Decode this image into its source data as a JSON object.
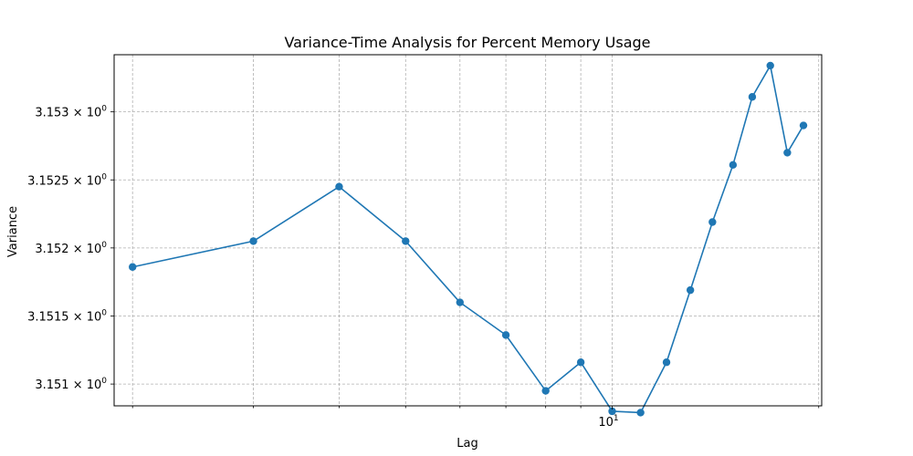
{
  "chart_data": {
    "type": "line",
    "title": "Variance-Time Analysis for Percent Memory Usage",
    "xlabel": "Lag",
    "ylabel": "Variance",
    "xscale": "log",
    "yscale": "log",
    "grid": true,
    "x_tick_labels": [
      {
        "value": 10,
        "base": "10",
        "exp": "1"
      }
    ],
    "y_tick_labels": [
      {
        "value": 3.151,
        "mant": "3.151",
        "base": "10",
        "exp": "0"
      },
      {
        "value": 3.1515,
        "mant": "3.1515",
        "base": "10",
        "exp": "0"
      },
      {
        "value": 3.152,
        "mant": "3.152",
        "base": "10",
        "exp": "0"
      },
      {
        "value": 3.1525,
        "mant": "3.1525",
        "base": "10",
        "exp": "0"
      },
      {
        "value": 3.153,
        "mant": "3.153",
        "base": "10",
        "exp": "0"
      }
    ],
    "xlim": [
      1.88,
      20.2
    ],
    "ylim": [
      3.15084,
      3.15342
    ],
    "series": [
      {
        "color": "#1f77b4",
        "marker": "circle",
        "x": [
          2,
          3,
          4,
          5,
          6,
          7,
          8,
          9,
          10,
          11,
          12,
          13,
          14,
          15,
          16,
          17,
          18,
          19
        ],
        "y": [
          3.15186,
          3.15205,
          3.15245,
          3.15205,
          3.1516,
          3.15136,
          3.15095,
          3.15116,
          3.1508,
          3.15079,
          3.15116,
          3.15169,
          3.15219,
          3.15261,
          3.15311,
          3.15334,
          3.1527,
          3.1529
        ]
      }
    ]
  }
}
